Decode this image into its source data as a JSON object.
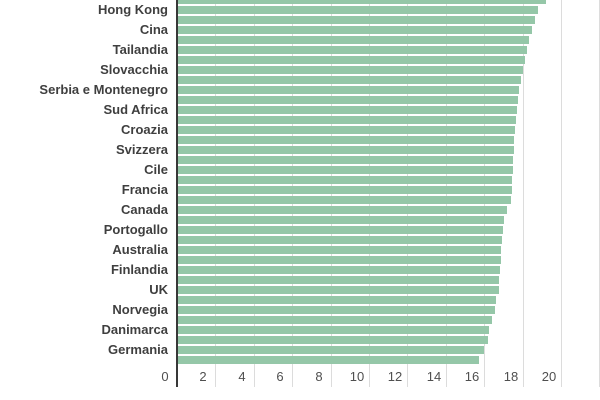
{
  "chart_data": {
    "type": "bar",
    "orientation": "horizontal",
    "title": "",
    "xlabel": "",
    "ylabel": "",
    "xlim": [
      0,
      22
    ],
    "x_tick_values": [
      0,
      2,
      4,
      6,
      8,
      10,
      12,
      14,
      16,
      18,
      20
    ],
    "x_tick_labels": [
      "0",
      "2",
      "4",
      "6",
      "8",
      "10",
      "12",
      "14",
      "16",
      "18",
      "20"
    ],
    "gridline_values": [
      2,
      4,
      6,
      8,
      10,
      12,
      14,
      16,
      18,
      20,
      22
    ],
    "grid": true,
    "legend": "none",
    "label_skip": "every other bar is unlabeled; empty string = label not shown in viewport",
    "categories": [
      "",
      "Hong Kong",
      "",
      "Cina",
      "",
      "Tailandia",
      "",
      "Slovacchia",
      "",
      "Serbia e Montenegro",
      "",
      "Sud Africa",
      "",
      "Croazia",
      "",
      "Svizzera",
      "",
      "Cile",
      "",
      "Francia",
      "",
      "Canada",
      "",
      "Portogallo",
      "",
      "Australia",
      "",
      "Finlandia",
      "",
      "UK",
      "",
      "Norvegia",
      "",
      "Danimarca",
      "",
      "Germania",
      ""
    ],
    "values": [
      19.2,
      18.8,
      18.65,
      18.5,
      18.35,
      18.25,
      18.1,
      18.0,
      17.9,
      17.8,
      17.75,
      17.7,
      17.65,
      17.6,
      17.55,
      17.55,
      17.5,
      17.5,
      17.45,
      17.45,
      17.4,
      17.2,
      17.05,
      17.0,
      16.95,
      16.9,
      16.85,
      16.8,
      16.75,
      16.75,
      16.6,
      16.55,
      16.4,
      16.25,
      16.2,
      16.0,
      15.75
    ],
    "colors": {
      "bar": "#95c7a8",
      "axis": "#383838",
      "gridline": "#dcdcdc",
      "category_label": "#3f3f3f",
      "tick_label": "#4f4f4f",
      "background": "#ffffff"
    }
  }
}
